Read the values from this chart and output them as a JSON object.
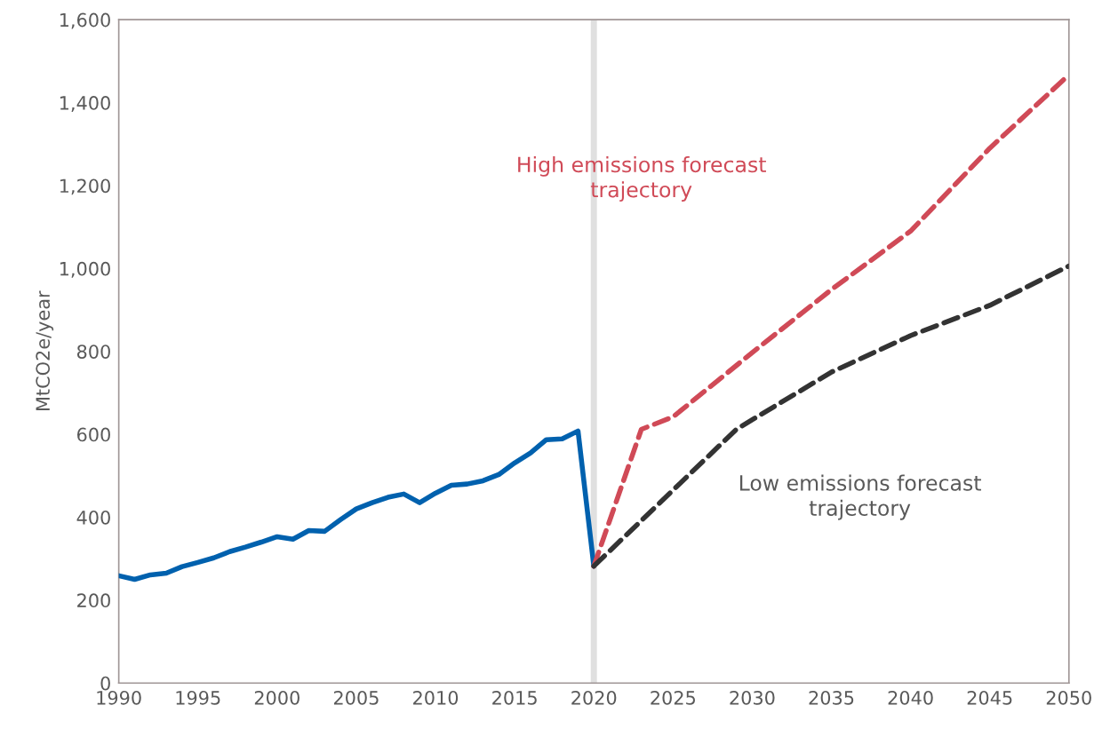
{
  "chart_data": {
    "type": "line",
    "ylabel": "MtCO2e/year",
    "xlim": [
      1990,
      2050
    ],
    "ylim": [
      0,
      1600
    ],
    "xticks": [
      1990,
      1995,
      2000,
      2005,
      2010,
      2015,
      2020,
      2025,
      2030,
      2035,
      2040,
      2045,
      2050
    ],
    "yticks": [
      {
        "value": 0,
        "label": "0"
      },
      {
        "value": 200,
        "label": "200"
      },
      {
        "value": 400,
        "label": "400"
      },
      {
        "value": 600,
        "label": "600"
      },
      {
        "value": 800,
        "label": "800"
      },
      {
        "value": 1000,
        "label": "1,000"
      },
      {
        "value": 1200,
        "label": "1,200"
      },
      {
        "value": 1400,
        "label": "1,400"
      },
      {
        "value": 1600,
        "label": "1,600"
      }
    ],
    "grid": false,
    "legend": false,
    "series": [
      {
        "color": "#0061ae",
        "line_style": "solid",
        "x": [
          1990,
          1991,
          1992,
          1993,
          1994,
          1995,
          1996,
          1997,
          1998,
          1999,
          2000,
          2001,
          2002,
          2003,
          2004,
          2005,
          2006,
          2007,
          2008,
          2009,
          2010,
          2011,
          2012,
          2013,
          2014,
          2015,
          2016,
          2017,
          2018,
          2019,
          2020
        ],
        "values": [
          259,
          250,
          261,
          265,
          281,
          291,
          302,
          317,
          328,
          340,
          353,
          347,
          368,
          366,
          394,
          420,
          435,
          448,
          456,
          435,
          458,
          477,
          480,
          488,
          503,
          531,
          555,
          587,
          589,
          608,
          282
        ]
      },
      {
        "color": "#d04a57",
        "line_style": "dashed",
        "x": [
          2020,
          2023,
          2025,
          2030,
          2035,
          2040,
          2045,
          2050
        ],
        "values": [
          282,
          612,
          642,
          797,
          949,
          1090,
          1290,
          1467
        ]
      },
      {
        "color": "#333333",
        "line_style": "dashed",
        "x": [
          2020,
          2029,
          2035,
          2040,
          2045,
          2050
        ],
        "values": [
          282,
          612,
          750,
          838,
          911,
          1006
        ]
      }
    ],
    "ref_lines": [
      {
        "axis": "x",
        "value": 2020,
        "color": "#e0e0e0",
        "line_style": "solid"
      }
    ],
    "annotations": [
      "High emissions forecast\ntrajectory",
      "Low emissions forecast\ntrajectory"
    ]
  }
}
